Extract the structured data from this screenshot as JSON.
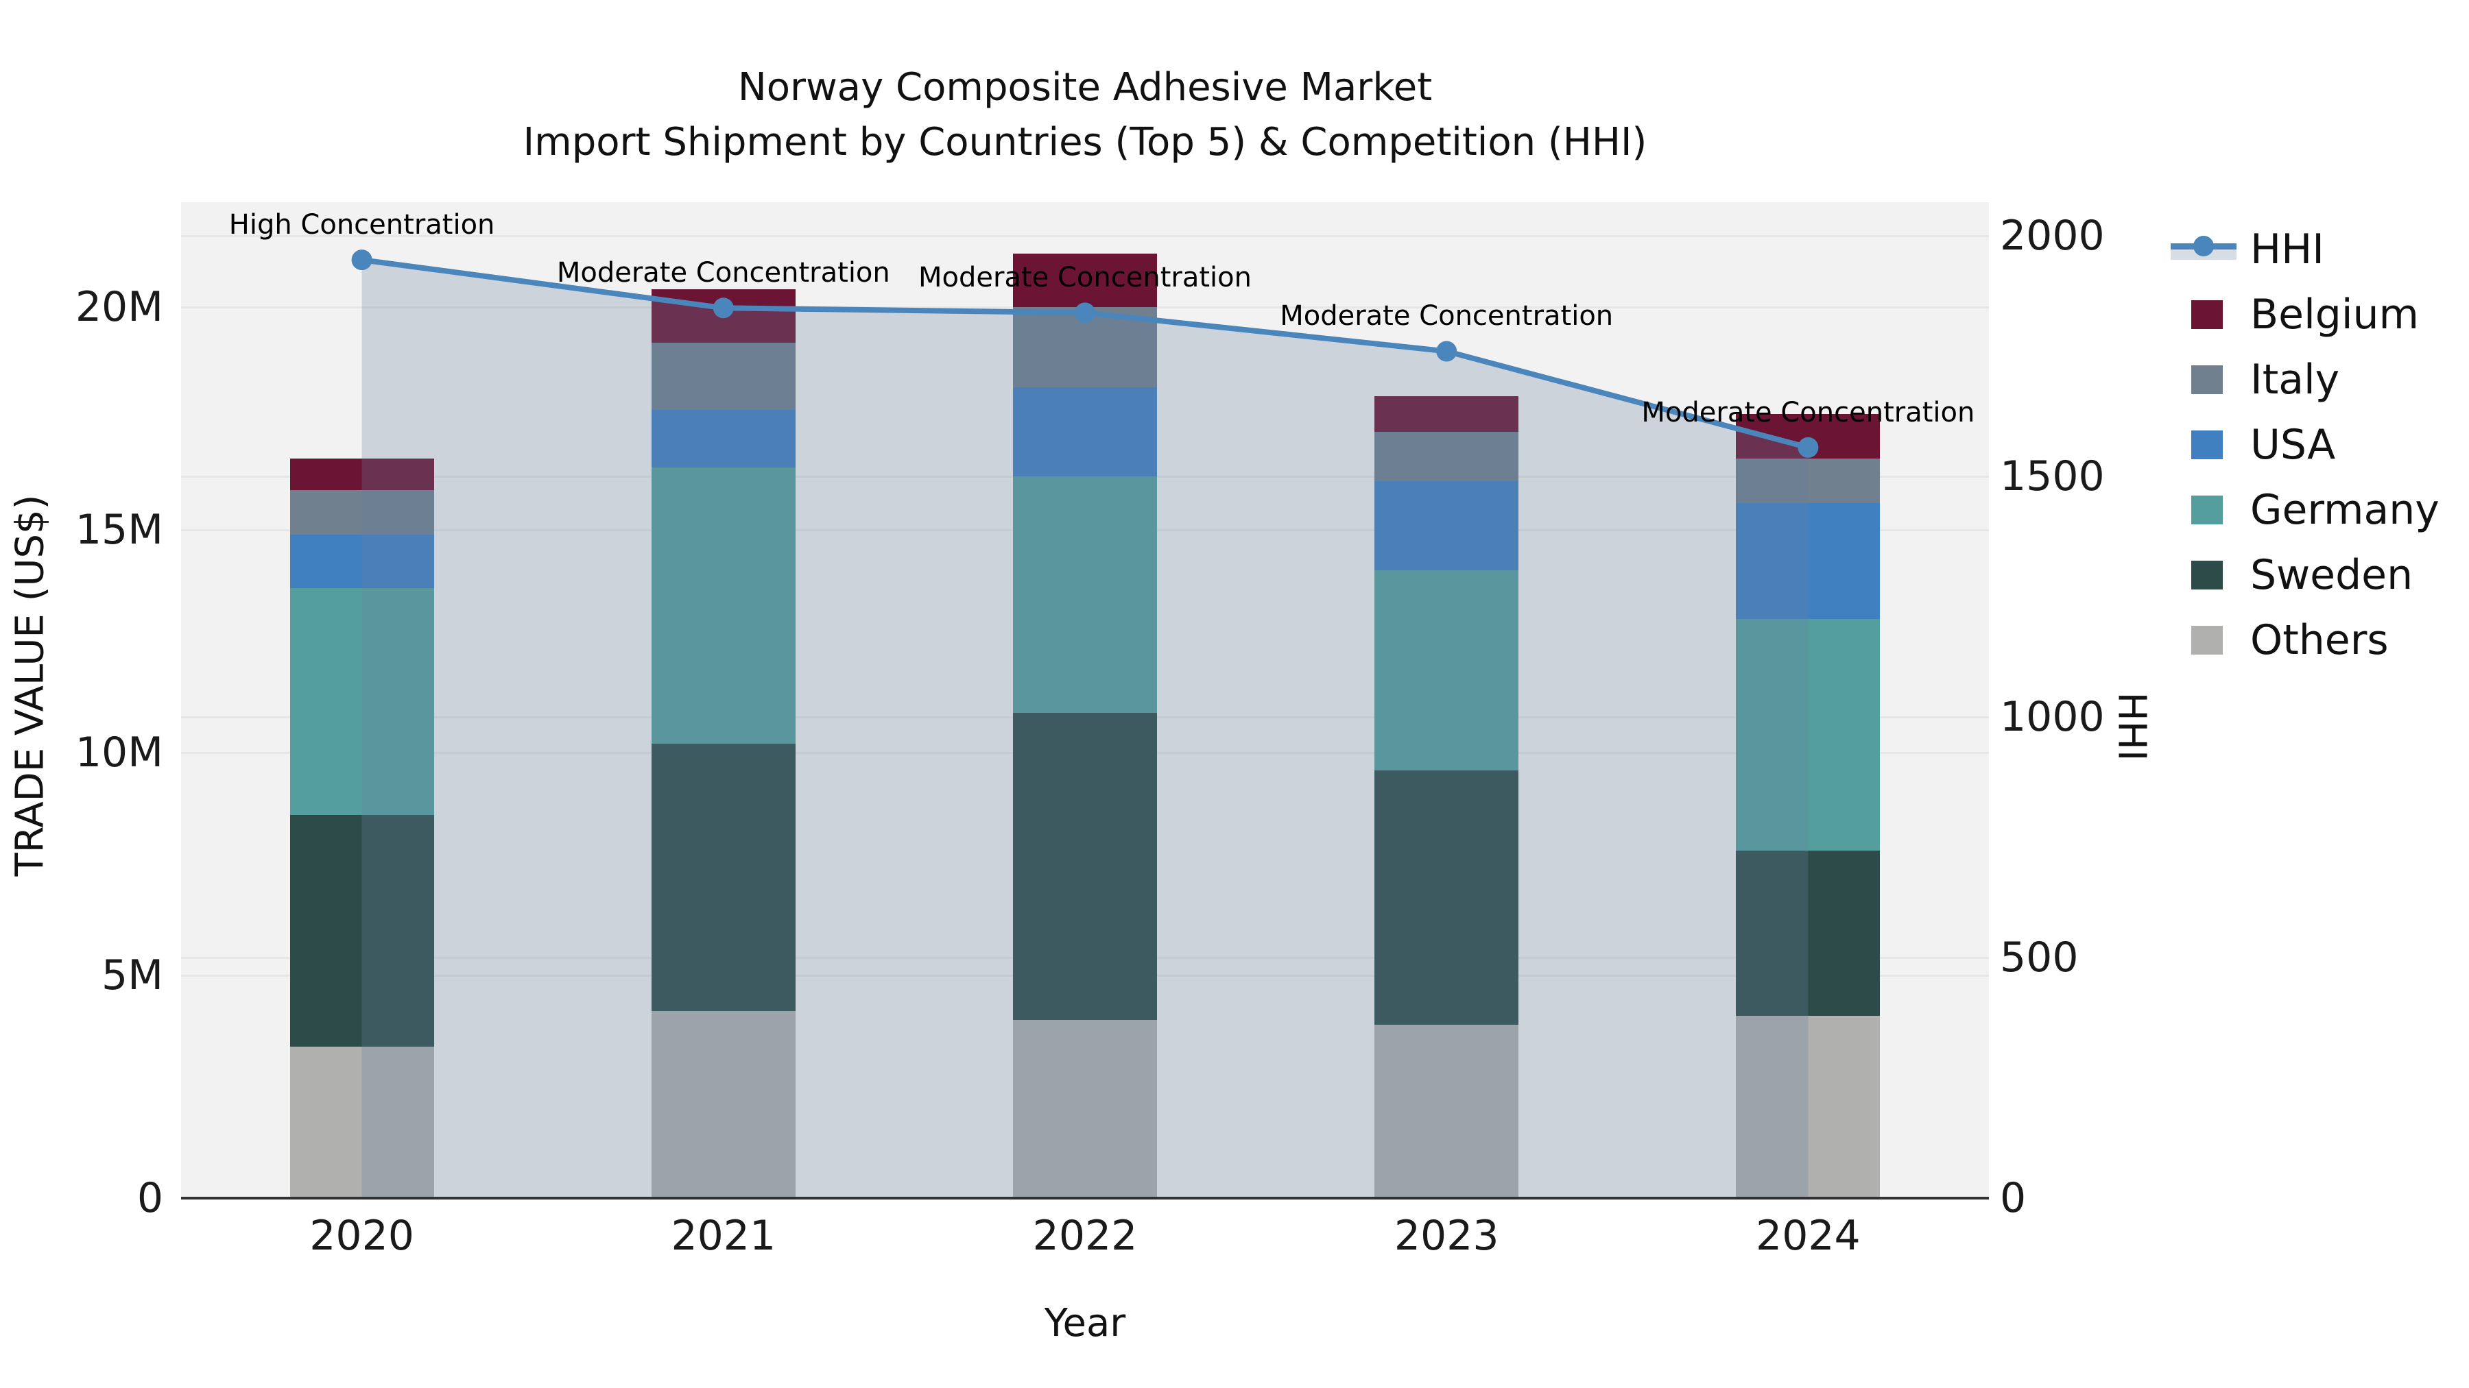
{
  "title": {
    "line1": "Norway Composite Adhesive Market",
    "line2": "Import Shipment by Countries (Top 5) & Competition (HHI)"
  },
  "axes": {
    "x_label": "Year",
    "y_left_label": "TRADE VALUE (US$)",
    "y_right_label": "HHI",
    "y_left_ticks": [
      {
        "label": "0",
        "value": 0
      },
      {
        "label": "5M",
        "value": 5
      },
      {
        "label": "10M",
        "value": 10
      },
      {
        "label": "15M",
        "value": 15
      },
      {
        "label": "20M",
        "value": 20
      }
    ],
    "y_right_ticks": [
      {
        "label": "0",
        "value": 0
      },
      {
        "label": "500",
        "value": 500
      },
      {
        "label": "1000",
        "value": 1000
      },
      {
        "label": "1500",
        "value": 1500
      },
      {
        "label": "2000",
        "value": 2000
      }
    ]
  },
  "legend": {
    "items": [
      {
        "label": "HHI",
        "type": "line",
        "color": "#4a86bb"
      },
      {
        "label": "Belgium",
        "type": "patch",
        "color": "#6b1433"
      },
      {
        "label": "Italy",
        "type": "patch",
        "color": "#70808f"
      },
      {
        "label": "USA",
        "type": "patch",
        "color": "#4080c0"
      },
      {
        "label": "Germany",
        "type": "patch",
        "color": "#559e9e"
      },
      {
        "label": "Sweden",
        "type": "patch",
        "color": "#2d4c49"
      },
      {
        "label": "Others",
        "type": "patch",
        "color": "#b0b0ae"
      }
    ]
  },
  "chart_data": {
    "type": "bar+line",
    "title": "Norway Composite Adhesive Market — Import Shipment by Countries (Top 5) & Competition (HHI)",
    "xlabel": "Year",
    "ylabel": "TRADE VALUE (US$)",
    "y2label": "HHI",
    "categories": [
      "2020",
      "2021",
      "2022",
      "2023",
      "2024"
    ],
    "stack_order_bottom_to_top": [
      "Others",
      "Sweden",
      "Germany",
      "USA",
      "Italy",
      "Belgium"
    ],
    "series": [
      {
        "name": "Belgium",
        "type": "bar",
        "color": "#6b1433",
        "values_musd": [
          0.7,
          1.2,
          1.2,
          0.8,
          1.0
        ]
      },
      {
        "name": "Italy",
        "type": "bar",
        "color": "#70808f",
        "values_musd": [
          1.0,
          1.5,
          1.8,
          1.1,
          1.0
        ]
      },
      {
        "name": "USA",
        "type": "bar",
        "color": "#4080c0",
        "values_musd": [
          1.2,
          1.3,
          2.0,
          2.0,
          2.6
        ]
      },
      {
        "name": "Germany",
        "type": "bar",
        "color": "#559e9e",
        "values_musd": [
          5.1,
          6.2,
          5.3,
          4.5,
          5.2
        ]
      },
      {
        "name": "Sweden",
        "type": "bar",
        "color": "#2d4c49",
        "values_musd": [
          5.2,
          6.0,
          6.9,
          5.7,
          3.7
        ]
      },
      {
        "name": "Others",
        "type": "bar",
        "color": "#b0b0ae",
        "values_musd": [
          3.4,
          4.2,
          4.0,
          3.9,
          4.1
        ]
      }
    ],
    "totals_musd": [
      16.6,
      20.4,
      21.2,
      18.0,
      17.6
    ],
    "hhi": {
      "name": "HHI",
      "type": "line",
      "color": "#4a86bb",
      "fill_color": "rgba(105,130,160,0.27)",
      "values": [
        1950,
        1850,
        1840,
        1760,
        1560
      ]
    },
    "annotations": [
      {
        "year": "2020",
        "text": "High Concentration"
      },
      {
        "year": "2021",
        "text": "Moderate Concentration"
      },
      {
        "year": "2022",
        "text": "Moderate Concentration"
      },
      {
        "year": "2023",
        "text": "Moderate Concentration"
      },
      {
        "year": "2024",
        "text": "Moderate Concentration"
      }
    ],
    "ylim_musd": [
      0,
      22.35
    ],
    "y2lim": [
      0,
      2070
    ],
    "grid": "horizontal",
    "legend_position": "right"
  }
}
